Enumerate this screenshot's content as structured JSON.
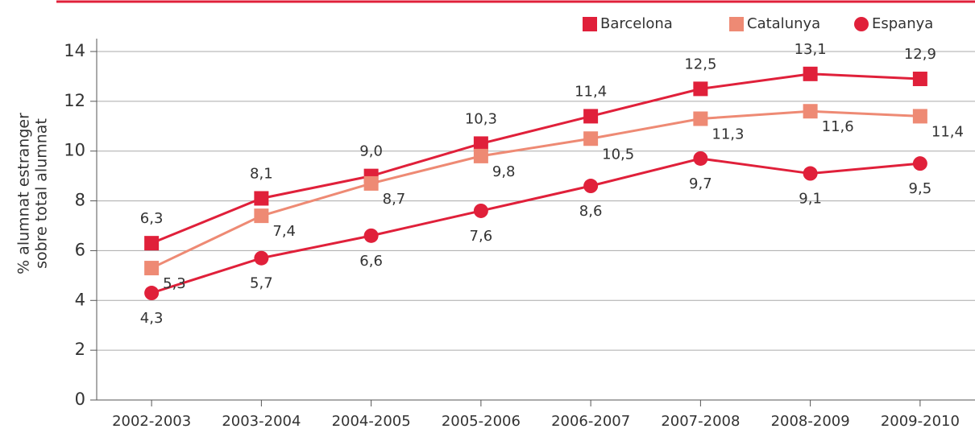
{
  "chart_data": {
    "type": "line",
    "ylabel": [
      "% alumnat estranger",
      "sobre total alumnat"
    ],
    "categories": [
      "2002-2003",
      "2003-2004",
      "2004-2005",
      "2005-2006",
      "2006-2007",
      "2007-2008",
      "2008-2009",
      "2009-2010"
    ],
    "series": [
      {
        "name": "Barcelona",
        "color": "#e0203a",
        "marker": "square",
        "values": [
          6.3,
          8.1,
          9.0,
          10.3,
          11.4,
          12.5,
          13.1,
          12.9
        ],
        "value_labels": [
          "6,3",
          "8,1",
          "9,0",
          "10,3",
          "11,4",
          "12,5",
          "13,1",
          "12,9"
        ]
      },
      {
        "name": "Catalunya",
        "color": "#ee8a74",
        "marker": "square",
        "values": [
          5.3,
          7.4,
          8.7,
          9.8,
          10.5,
          11.3,
          11.6,
          11.4
        ],
        "value_labels": [
          "5,3",
          "7,4",
          "8,7",
          "9,8",
          "10,5",
          "11,3",
          "11,6",
          "11,4"
        ]
      },
      {
        "name": "Espanya",
        "color": "#e0203a",
        "marker": "circle",
        "values": [
          4.3,
          5.7,
          6.6,
          7.6,
          8.6,
          9.7,
          9.1,
          9.5
        ],
        "value_labels": [
          "4,3",
          "5,7",
          "6,6",
          "7,6",
          "8,6",
          "9,7",
          "9,1",
          "9,5"
        ]
      }
    ],
    "ylim": [
      0,
      14
    ],
    "yticks": [
      0,
      2,
      4,
      6,
      8,
      10,
      12,
      14
    ],
    "grid": true,
    "legend": "top-right"
  }
}
